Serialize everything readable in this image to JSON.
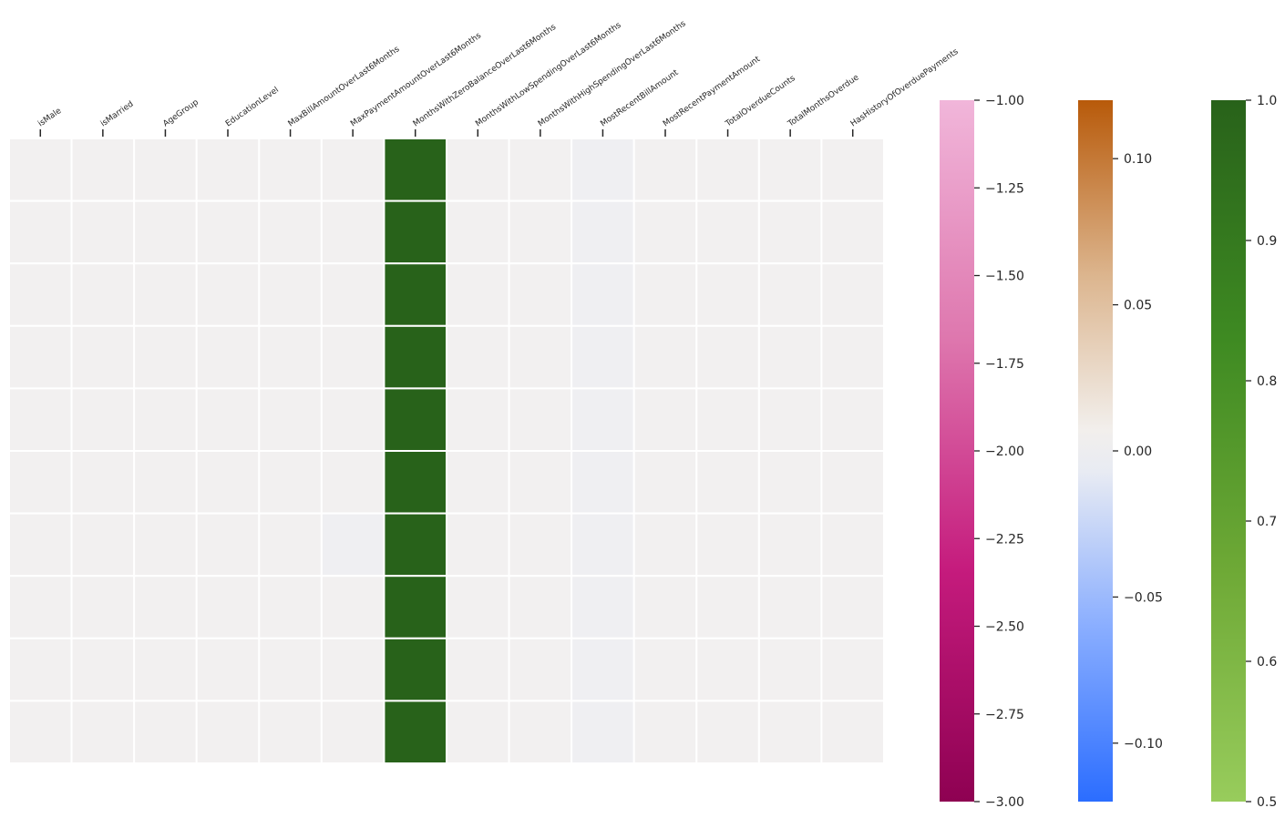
{
  "chart_data": {
    "type": "heatmap",
    "title": "",
    "xlabel": "",
    "ylabel": "",
    "columns": [
      "isMale",
      "isMarried",
      "AgeGroup",
      "EducationLevel",
      "MaxBillAmountOverLast6Months",
      "MaxPaymentAmountOverLast6Months",
      "MonthsWithZeroBalanceOverLast6Months",
      "MonthsWithLowSpendingOverLast6Months",
      "MonthsWithHighSpendingOverLast6Months",
      "MostRecentBillAmount",
      "MostRecentPaymentAmount",
      "TotalOverdueCounts",
      "TotalMonthsOverdue",
      "HasHistoryOfOverduePayments"
    ],
    "rows": 10,
    "values": [
      [
        0,
        0,
        0,
        0,
        0,
        0,
        1,
        0,
        0,
        -0.004,
        0,
        0,
        0,
        0
      ],
      [
        0,
        0,
        0,
        0,
        0,
        0,
        1,
        0,
        0,
        -0.004,
        0,
        0,
        0,
        0
      ],
      [
        0,
        0,
        0,
        0,
        0,
        0,
        1,
        0,
        0,
        -0.004,
        0,
        0,
        0,
        0
      ],
      [
        0,
        0,
        0,
        0,
        0,
        0,
        1,
        0,
        0,
        -0.004,
        0,
        0,
        0,
        0
      ],
      [
        0,
        0,
        0,
        0,
        0,
        0,
        1,
        0,
        0,
        -0.004,
        0,
        0,
        0,
        0
      ],
      [
        0,
        0,
        0,
        0,
        0,
        0,
        1,
        0,
        0,
        -0.004,
        0,
        0,
        0,
        0
      ],
      [
        0,
        0,
        0,
        0,
        0,
        -0.004,
        1,
        0,
        0,
        -0.004,
        0,
        0,
        0,
        0
      ],
      [
        0,
        0,
        0,
        0,
        0,
        0,
        1,
        0,
        0,
        -0.004,
        0,
        0,
        0,
        0
      ],
      [
        0,
        0,
        0,
        0,
        0,
        0,
        1,
        0,
        0,
        -0.004,
        0,
        0,
        0,
        0
      ],
      [
        0,
        0,
        0,
        0,
        0,
        0,
        1,
        0,
        0,
        -0.004,
        0,
        0,
        0,
        0
      ]
    ],
    "grid": "white",
    "colorbars": [
      {
        "name": "negative",
        "range": [
          -3.0,
          -1.0
        ],
        "ticks": [
          "−1.00",
          "−1.25",
          "−1.50",
          "−1.75",
          "−2.00",
          "−2.25",
          "−2.50",
          "−2.75",
          "−3.00"
        ],
        "tick_values": [
          -1.0,
          -1.25,
          -1.5,
          -1.75,
          -2.0,
          -2.25,
          -2.5,
          -2.75,
          -3.0
        ],
        "colors": [
          "#8e0152",
          "#c51b7d",
          "#de77ae",
          "#f1b6da"
        ]
      },
      {
        "name": "near-zero",
        "range": [
          -0.12,
          0.12
        ],
        "ticks": [
          "0.10",
          "0.05",
          "0.00",
          "−0.05",
          "−0.10"
        ],
        "tick_values": [
          0.1,
          0.05,
          0.0,
          -0.05,
          -0.1
        ],
        "colors": [
          "#2b6dff",
          "#8aaeff",
          "#e8ebf3",
          "#f2efec",
          "#dcb58e",
          "#b85a0a"
        ]
      },
      {
        "name": "positive",
        "range": [
          0.5,
          1.0
        ],
        "ticks": [
          "1.0",
          "0.9",
          "0.8",
          "0.7",
          "0.6",
          "0.5"
        ],
        "tick_values": [
          1.0,
          0.9,
          0.8,
          0.7,
          0.6,
          0.5
        ],
        "colors": [
          "#98cc5c",
          "#6ea936",
          "#3e8a22",
          "#28621a"
        ]
      }
    ]
  }
}
